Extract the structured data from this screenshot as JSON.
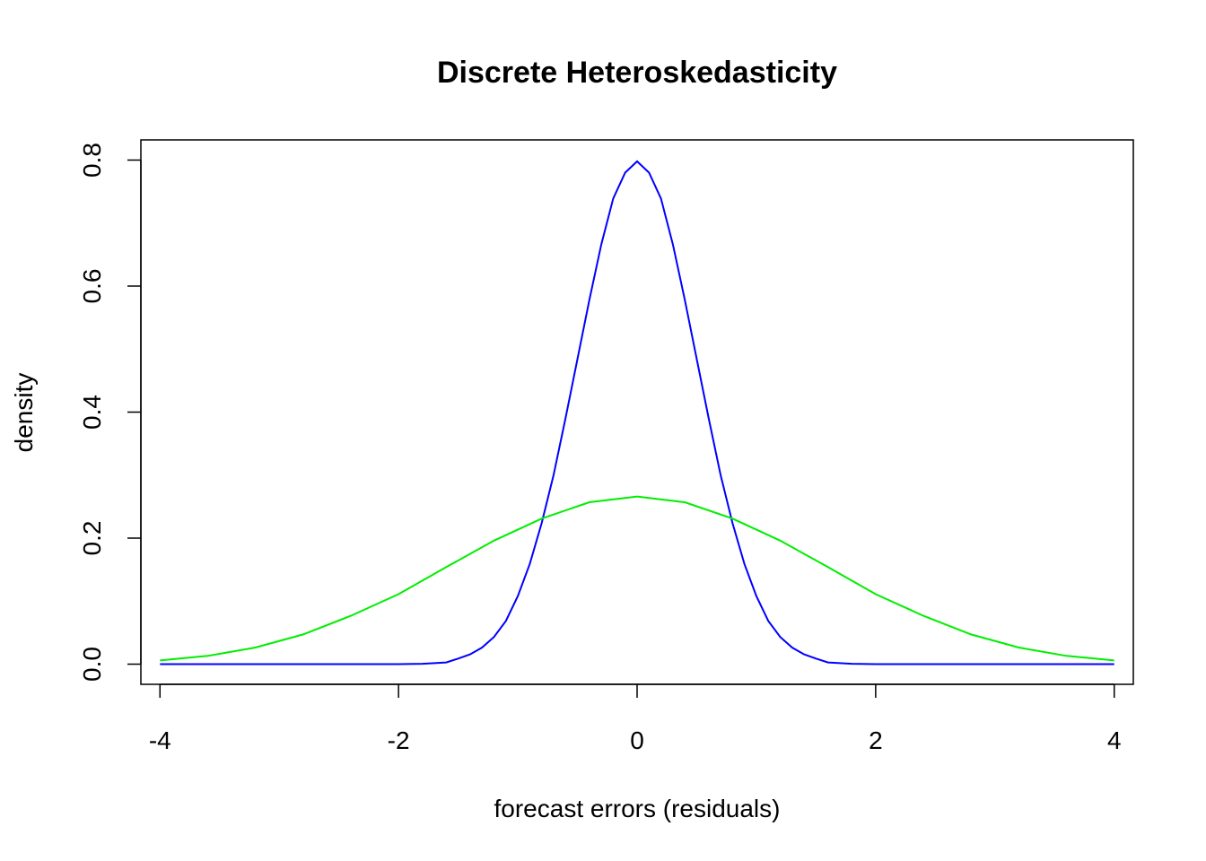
{
  "chart_data": {
    "type": "line",
    "title": "Discrete Heteroskedasticity",
    "xlabel": "forecast errors (residuals)",
    "ylabel": "density",
    "xlim": [
      -4.16,
      4.16
    ],
    "ylim": [
      -0.032,
      0.832
    ],
    "x_ticks": [
      -4,
      -2,
      0,
      2,
      4
    ],
    "x_tick_labels": [
      "-4",
      "-2",
      "0",
      "2",
      "4"
    ],
    "y_ticks": [
      0.0,
      0.2,
      0.4,
      0.6,
      0.8
    ],
    "y_tick_labels": [
      "0.0",
      "0.2",
      "0.4",
      "0.6",
      "0.8"
    ],
    "grid": false,
    "legend": "none",
    "series": [
      {
        "color": "#0000ff",
        "x": [
          -4.0,
          -3.6,
          -3.2,
          -2.8,
          -2.4,
          -2.0,
          -1.8,
          -1.6,
          -1.5,
          -1.4,
          -1.3,
          -1.2,
          -1.1,
          -1.0,
          -0.9,
          -0.8,
          -0.7,
          -0.6,
          -0.5,
          -0.4,
          -0.3,
          -0.2,
          -0.1,
          0.0,
          0.1,
          0.2,
          0.3,
          0.4,
          0.5,
          0.6,
          0.7,
          0.8,
          0.9,
          1.0,
          1.1,
          1.2,
          1.3,
          1.4,
          1.5,
          1.6,
          1.8,
          2.0,
          2.4,
          2.8,
          3.2,
          3.6,
          4.0
        ],
        "y": [
          0.0,
          0.0,
          0.0,
          0.0,
          0.0,
          0.0,
          0.0006,
          0.0027,
          0.0088,
          0.0155,
          0.0263,
          0.0432,
          0.0687,
          0.108,
          0.159,
          0.224,
          0.3,
          0.39,
          0.484,
          0.578,
          0.666,
          0.739,
          0.78,
          0.798,
          0.78,
          0.739,
          0.666,
          0.578,
          0.484,
          0.39,
          0.3,
          0.224,
          0.159,
          0.108,
          0.0687,
          0.0432,
          0.0263,
          0.0155,
          0.0088,
          0.0027,
          0.0006,
          0.0,
          0.0,
          0.0,
          0.0,
          0.0,
          0.0
        ]
      },
      {
        "color": "#00ee00",
        "x": [
          -4.0,
          -3.6,
          -3.2,
          -2.8,
          -2.4,
          -2.0,
          -1.6,
          -1.2,
          -0.8,
          -0.4,
          0.0,
          0.4,
          0.8,
          1.2,
          1.6,
          2.0,
          2.4,
          2.8,
          3.2,
          3.6,
          4.0
        ],
        "y": [
          0.0059,
          0.0131,
          0.0263,
          0.0472,
          0.0767,
          0.111,
          0.154,
          0.196,
          0.231,
          0.257,
          0.266,
          0.257,
          0.231,
          0.196,
          0.154,
          0.111,
          0.0767,
          0.0472,
          0.0263,
          0.0131,
          0.0059
        ]
      }
    ]
  }
}
